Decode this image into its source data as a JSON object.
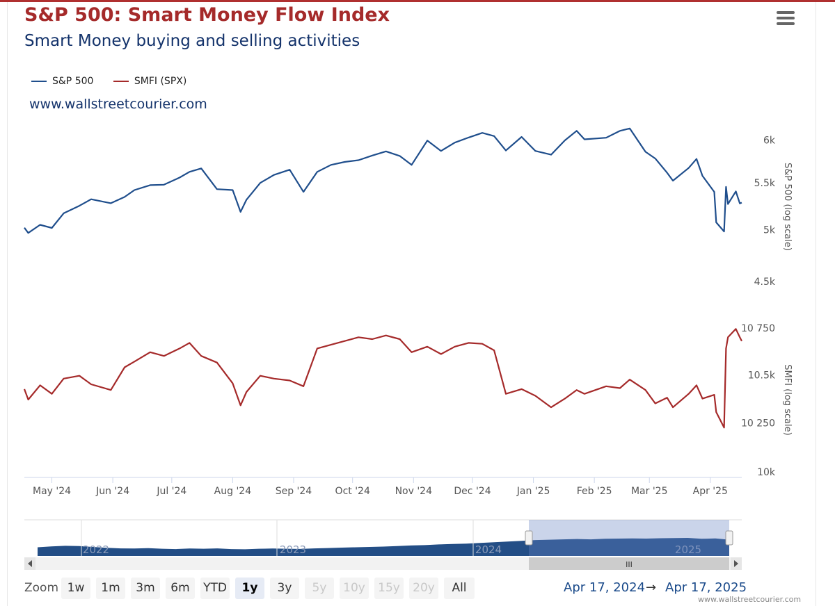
{
  "header": {
    "title": "S&P 500: Smart Money Flow Index",
    "subtitle": "Smart Money buying and selling activities",
    "credit": "www.wallstreetcourier.com",
    "menu_icon": "hamburger-menu-icon"
  },
  "legend": [
    {
      "name": "S&P 500",
      "color": "#1f4e8c"
    },
    {
      "name": "SMFI (SPX)",
      "color": "#a52a2a"
    }
  ],
  "chart_data": [
    {
      "type": "line",
      "name": "S&P 500",
      "color": "#1f4e8c",
      "ylabel": "S&P 500 (log scale)",
      "scale": "log",
      "y_ticks": [
        {
          "value": 6000,
          "label": "6k"
        },
        {
          "value": 5500,
          "label": "5.5k"
        },
        {
          "value": 5000,
          "label": "5k"
        },
        {
          "value": 4500,
          "label": "4.5k"
        }
      ],
      "ylim": [
        4500,
        6100
      ],
      "points": [
        [
          "2024-04-17",
          5020
        ],
        [
          "2024-04-19",
          4967
        ],
        [
          "2024-04-25",
          5050
        ],
        [
          "2024-05-01",
          5018
        ],
        [
          "2024-05-07",
          5170
        ],
        [
          "2024-05-15",
          5250
        ],
        [
          "2024-05-21",
          5320
        ],
        [
          "2024-05-31",
          5277
        ],
        [
          "2024-06-07",
          5345
        ],
        [
          "2024-06-12",
          5420
        ],
        [
          "2024-06-20",
          5475
        ],
        [
          "2024-06-27",
          5480
        ],
        [
          "2024-07-05",
          5560
        ],
        [
          "2024-07-10",
          5625
        ],
        [
          "2024-07-16",
          5665
        ],
        [
          "2024-07-24",
          5430
        ],
        [
          "2024-08-01",
          5420
        ],
        [
          "2024-08-05",
          5185
        ],
        [
          "2024-08-08",
          5315
        ],
        [
          "2024-08-15",
          5500
        ],
        [
          "2024-08-22",
          5590
        ],
        [
          "2024-08-30",
          5650
        ],
        [
          "2024-09-06",
          5400
        ],
        [
          "2024-09-13",
          5625
        ],
        [
          "2024-09-20",
          5705
        ],
        [
          "2024-09-27",
          5740
        ],
        [
          "2024-10-04",
          5760
        ],
        [
          "2024-10-11",
          5815
        ],
        [
          "2024-10-18",
          5865
        ],
        [
          "2024-10-25",
          5810
        ],
        [
          "2024-10-31",
          5705
        ],
        [
          "2024-11-08",
          5995
        ],
        [
          "2024-11-15",
          5870
        ],
        [
          "2024-11-22",
          5970
        ],
        [
          "2024-11-29",
          6032
        ],
        [
          "2024-12-06",
          6090
        ],
        [
          "2024-12-12",
          6050
        ],
        [
          "2024-12-18",
          5875
        ],
        [
          "2024-12-26",
          6040
        ],
        [
          "2025-01-02",
          5870
        ],
        [
          "2025-01-10",
          5825
        ],
        [
          "2025-01-17",
          5997
        ],
        [
          "2025-01-23",
          6115
        ],
        [
          "2025-01-27",
          6010
        ],
        [
          "2025-02-07",
          6030
        ],
        [
          "2025-02-14",
          6115
        ],
        [
          "2025-02-19",
          6145
        ],
        [
          "2025-02-27",
          5860
        ],
        [
          "2025-03-04",
          5780
        ],
        [
          "2025-03-10",
          5615
        ],
        [
          "2025-03-13",
          5525
        ],
        [
          "2025-03-21",
          5670
        ],
        [
          "2025-03-25",
          5775
        ],
        [
          "2025-03-28",
          5580
        ],
        [
          "2025-04-03",
          5400
        ],
        [
          "2025-04-04",
          5075
        ],
        [
          "2025-04-08",
          4982
        ],
        [
          "2025-04-09",
          5456
        ],
        [
          "2025-04-10",
          5268
        ],
        [
          "2025-04-14",
          5406
        ],
        [
          "2025-04-16",
          5275
        ],
        [
          "2025-04-17",
          5283
        ]
      ]
    },
    {
      "type": "line",
      "name": "SMFI (SPX)",
      "color": "#a52a2a",
      "ylabel": "SMFI (log scale)",
      "scale": "log",
      "y_ticks": [
        {
          "value": 10750,
          "label": "10 750"
        },
        {
          "value": 10500,
          "label": "10.5k"
        },
        {
          "value": 10250,
          "label": "10 250"
        },
        {
          "value": 10000,
          "label": "10k"
        }
      ],
      "ylim": [
        10000,
        10750
      ],
      "points": [
        [
          "2024-04-17",
          10425
        ],
        [
          "2024-04-19",
          10370
        ],
        [
          "2024-04-25",
          10445
        ],
        [
          "2024-05-01",
          10400
        ],
        [
          "2024-05-07",
          10480
        ],
        [
          "2024-05-15",
          10495
        ],
        [
          "2024-05-21",
          10450
        ],
        [
          "2024-05-31",
          10420
        ],
        [
          "2024-06-07",
          10540
        ],
        [
          "2024-06-12",
          10570
        ],
        [
          "2024-06-20",
          10620
        ],
        [
          "2024-06-27",
          10600
        ],
        [
          "2024-07-05",
          10640
        ],
        [
          "2024-07-10",
          10670
        ],
        [
          "2024-07-16",
          10600
        ],
        [
          "2024-07-24",
          10565
        ],
        [
          "2024-08-01",
          10455
        ],
        [
          "2024-08-05",
          10340
        ],
        [
          "2024-08-08",
          10410
        ],
        [
          "2024-08-15",
          10495
        ],
        [
          "2024-08-22",
          10480
        ],
        [
          "2024-08-30",
          10470
        ],
        [
          "2024-09-06",
          10440
        ],
        [
          "2024-09-13",
          10640
        ],
        [
          "2024-09-20",
          10660
        ],
        [
          "2024-09-27",
          10680
        ],
        [
          "2024-10-04",
          10700
        ],
        [
          "2024-10-11",
          10690
        ],
        [
          "2024-10-18",
          10710
        ],
        [
          "2024-10-25",
          10690
        ],
        [
          "2024-10-31",
          10620
        ],
        [
          "2024-11-08",
          10650
        ],
        [
          "2024-11-15",
          10610
        ],
        [
          "2024-11-22",
          10650
        ],
        [
          "2024-11-29",
          10670
        ],
        [
          "2024-12-06",
          10665
        ],
        [
          "2024-12-12",
          10630
        ],
        [
          "2024-12-18",
          10400
        ],
        [
          "2024-12-26",
          10425
        ],
        [
          "2025-01-02",
          10390
        ],
        [
          "2025-01-10",
          10330
        ],
        [
          "2025-01-17",
          10375
        ],
        [
          "2025-01-23",
          10420
        ],
        [
          "2025-01-27",
          10400
        ],
        [
          "2025-02-07",
          10440
        ],
        [
          "2025-02-14",
          10430
        ],
        [
          "2025-02-19",
          10475
        ],
        [
          "2025-02-27",
          10420
        ],
        [
          "2025-03-04",
          10350
        ],
        [
          "2025-03-10",
          10380
        ],
        [
          "2025-03-13",
          10330
        ],
        [
          "2025-03-21",
          10400
        ],
        [
          "2025-03-25",
          10445
        ],
        [
          "2025-03-28",
          10375
        ],
        [
          "2025-04-03",
          10395
        ],
        [
          "2025-04-04",
          10305
        ],
        [
          "2025-04-08",
          10225
        ],
        [
          "2025-04-09",
          10640
        ],
        [
          "2025-04-10",
          10700
        ],
        [
          "2025-04-14",
          10745
        ],
        [
          "2025-04-16",
          10700
        ],
        [
          "2025-04-17",
          10680
        ]
      ]
    }
  ],
  "x_axis": {
    "labels": [
      {
        "date": "2024-05-01",
        "label": "May '24"
      },
      {
        "date": "2024-06-01",
        "label": "Jun '24"
      },
      {
        "date": "2024-07-01",
        "label": "Jul '24"
      },
      {
        "date": "2024-08-01",
        "label": "Aug '24"
      },
      {
        "date": "2024-09-01",
        "label": "Sep '24"
      },
      {
        "date": "2024-10-01",
        "label": "Oct '24"
      },
      {
        "date": "2024-11-01",
        "label": "Nov '24"
      },
      {
        "date": "2024-12-01",
        "label": "Dec '24"
      },
      {
        "date": "2025-01-01",
        "label": "Jan '25"
      },
      {
        "date": "2025-02-01",
        "label": "Feb '25"
      },
      {
        "date": "2025-03-01",
        "label": "Mar '25"
      },
      {
        "date": "2025-04-01",
        "label": "Apr '25"
      }
    ],
    "range_start": "2024-04-17",
    "range_end": "2025-04-17"
  },
  "navigator": {
    "year_labels": [
      "2022",
      "2023",
      "2024",
      "2025"
    ],
    "profile": [
      48,
      53,
      56,
      55,
      50,
      45,
      42,
      41,
      43,
      40,
      38,
      41,
      40,
      42,
      38,
      37,
      40,
      41,
      40,
      39,
      42,
      44,
      46,
      48,
      50,
      52,
      55,
      58,
      60,
      64,
      66,
      68,
      72,
      76,
      80,
      84,
      88,
      90,
      92,
      94,
      92,
      95,
      96,
      97,
      96,
      98,
      99,
      100,
      95,
      97,
      90
    ]
  },
  "zoom": {
    "label": "Zoom",
    "buttons": [
      {
        "label": "1w",
        "state": "normal"
      },
      {
        "label": "1m",
        "state": "normal"
      },
      {
        "label": "3m",
        "state": "normal"
      },
      {
        "label": "6m",
        "state": "normal"
      },
      {
        "label": "YTD",
        "state": "normal"
      },
      {
        "label": "1y",
        "state": "active"
      },
      {
        "label": "3y",
        "state": "normal"
      },
      {
        "label": "5y",
        "state": "disabled"
      },
      {
        "label": "10y",
        "state": "disabled"
      },
      {
        "label": "15y",
        "state": "disabled"
      },
      {
        "label": "20y",
        "state": "disabled"
      },
      {
        "label": "All",
        "state": "normal"
      }
    ]
  },
  "range": {
    "from": "Apr 17, 2024",
    "arrow": "→",
    "to": "Apr 17, 2025"
  },
  "watermark": "www.wallstreetcourier.com"
}
